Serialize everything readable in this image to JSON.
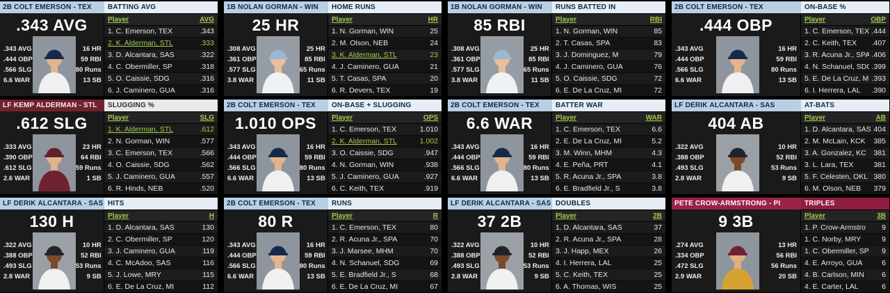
{
  "app": {
    "view_name": "league-batting-leaders"
  },
  "colors": {
    "link_green": "#a2cc4d",
    "page_bg": "#000000",
    "card_bg": "#181818",
    "header_blue_bg": "#b8d0e4",
    "header_blue_fg": "#0f2942",
    "header_maroon_bg": "#72222e",
    "header_crimson_bg": "#9b2247"
  },
  "cards": [
    {
      "header": {
        "player_label": "2B COLT EMERSON - TEX",
        "category_label": "BATTING AVG",
        "player_bg": "#b8d0e4",
        "player_fg": "#0f2942",
        "category_bg": "#e6edf4",
        "category_fg": "#0f2942"
      },
      "featured": {
        "big_stat": ".343 AVG",
        "left_stats": [
          ".343 AVG",
          ".444 OBP",
          ".566 SLG",
          "6.6 WAR"
        ],
        "right_stats": [
          "16 HR",
          "59 RBI",
          "80 Runs",
          "13 SB"
        ],
        "avatar": {
          "skin": "#e3b48c",
          "cap": "#15294d",
          "jersey": "#f0f0f2",
          "backdrop": "#8f959c"
        }
      },
      "board": {
        "player_col_label": "Player",
        "stat_col_label": "AVG",
        "rows": [
          {
            "name": "1. C. Emerson, TEX",
            "value": ".343",
            "highlight": false
          },
          {
            "name": "2. K. Alderman, STL",
            "value": ".333",
            "highlight": true
          },
          {
            "name": "3. D. Alcantara, SAS",
            "value": ".322",
            "highlight": false
          },
          {
            "name": "4. C. Obermiller, SP",
            "value": ".318",
            "highlight": false
          },
          {
            "name": "5. O. Caissie, SDG",
            "value": ".316",
            "highlight": false
          },
          {
            "name": "6. J. Caminero, GUA",
            "value": ".316",
            "highlight": false
          }
        ]
      }
    },
    {
      "header": {
        "player_label": "1B NOLAN GORMAN - WIN",
        "category_label": "HOME RUNS",
        "player_bg": "#b8d0e4",
        "player_fg": "#0f2942",
        "category_bg": "#e6edf4",
        "category_fg": "#0f2942"
      },
      "featured": {
        "big_stat": "25 HR",
        "left_stats": [
          ".308 AVG",
          ".361 OBP",
          ".577 SLG",
          "3.8 WAR"
        ],
        "right_stats": [
          "25 HR",
          "85 RBI",
          "65 Runs",
          "11 SB"
        ],
        "avatar": {
          "skin": "#e8c09a",
          "cap": "#9cb8d4",
          "jersey": "#eef2f6",
          "backdrop": "#969ca3"
        }
      },
      "board": {
        "player_col_label": "Player",
        "stat_col_label": "HR",
        "rows": [
          {
            "name": "1. N. Gorman, WIN",
            "value": "25",
            "highlight": false
          },
          {
            "name": "2. M. Olson, NEB",
            "value": "24",
            "highlight": false
          },
          {
            "name": "3. K. Alderman, STL",
            "value": "23",
            "highlight": true
          },
          {
            "name": "4. J. Caminero, GUA",
            "value": "21",
            "highlight": false
          },
          {
            "name": "5. T. Casas, SPA",
            "value": "20",
            "highlight": false
          },
          {
            "name": "6. R. Devers, TEX",
            "value": "19",
            "highlight": false
          }
        ]
      }
    },
    {
      "header": {
        "player_label": "1B NOLAN GORMAN - WIN",
        "category_label": "RUNS BATTED IN",
        "player_bg": "#b8d0e4",
        "player_fg": "#0f2942",
        "category_bg": "#e6edf4",
        "category_fg": "#0f2942"
      },
      "featured": {
        "big_stat": "85 RBI",
        "left_stats": [
          ".308 AVG",
          ".361 OBP",
          ".577 SLG",
          "3.8 WAR"
        ],
        "right_stats": [
          "25 HR",
          "85 RBI",
          "65 Runs",
          "11 SB"
        ],
        "avatar": {
          "skin": "#e8c09a",
          "cap": "#9cb8d4",
          "jersey": "#eef2f6",
          "backdrop": "#969ca3"
        }
      },
      "board": {
        "player_col_label": "Player",
        "stat_col_label": "RBI",
        "rows": [
          {
            "name": "1. N. Gorman, WIN",
            "value": "85",
            "highlight": false
          },
          {
            "name": "2. T. Casas, SPA",
            "value": "83",
            "highlight": false
          },
          {
            "name": "3. J. Dominguez, M",
            "value": "79",
            "highlight": false
          },
          {
            "name": "4. J. Caminero, GUA",
            "value": "76",
            "highlight": false
          },
          {
            "name": "5. O. Caissie, SDG",
            "value": "72",
            "highlight": false
          },
          {
            "name": "6. E. De La Cruz, MI",
            "value": "72",
            "highlight": false
          }
        ]
      }
    },
    {
      "header": {
        "player_label": "2B COLT EMERSON - TEX",
        "category_label": "ON-BASE %",
        "player_bg": "#b8d0e4",
        "player_fg": "#0f2942",
        "category_bg": "#e6edf4",
        "category_fg": "#0f2942"
      },
      "featured": {
        "big_stat": ".444 OBP",
        "left_stats": [
          ".343 AVG",
          ".444 OBP",
          ".566 SLG",
          "6.6 WAR"
        ],
        "right_stats": [
          "16 HR",
          "59 RBI",
          "80 Runs",
          "13 SB"
        ],
        "avatar": {
          "skin": "#e3b48c",
          "cap": "#15294d",
          "jersey": "#f0f0f2",
          "backdrop": "#8f959c"
        }
      },
      "board": {
        "player_col_label": "Player",
        "stat_col_label": "OBP",
        "rows": [
          {
            "name": "1. C. Emerson, TEX",
            "value": ".444",
            "highlight": false
          },
          {
            "name": "2. C. Keith, TEX",
            "value": ".407",
            "highlight": false
          },
          {
            "name": "3. R. Acuna Jr., SPA",
            "value": ".406",
            "highlight": false
          },
          {
            "name": "4. N. Schanuel, SDG",
            "value": ".399",
            "highlight": false
          },
          {
            "name": "5. E. De La Cruz, MI",
            "value": ".393",
            "highlight": false
          },
          {
            "name": "6. I. Herrera, LAL",
            "value": ".390",
            "highlight": false
          }
        ]
      }
    },
    {
      "header": {
        "player_label": "LF KEMP ALDERMAN - STL",
        "category_label": "SLUGGING %",
        "player_bg": "#72222e",
        "player_fg": "#f5ecec",
        "category_bg": "#e9e9ec",
        "category_fg": "#2b2b33"
      },
      "featured": {
        "big_stat": ".612 SLG",
        "left_stats": [
          ".333 AVG",
          ".390 OBP",
          ".612 SLG",
          "2.6 WAR"
        ],
        "right_stats": [
          "23 HR",
          "64 RBI",
          "59 Runs",
          "1 SB"
        ],
        "avatar": {
          "skin": "#e2b28a",
          "cap": "#62202b",
          "jersey": "#6e2230",
          "backdrop": "#8f959c"
        }
      },
      "board": {
        "player_col_label": "Player",
        "stat_col_label": "SLG",
        "rows": [
          {
            "name": "1. K. Alderman, STL",
            "value": ".612",
            "highlight": true
          },
          {
            "name": "2. N. Gorman, WIN",
            "value": ".577",
            "highlight": false
          },
          {
            "name": "3. C. Emerson, TEX",
            "value": ".566",
            "highlight": false
          },
          {
            "name": "4. O. Caissie, SDG",
            "value": ".562",
            "highlight": false
          },
          {
            "name": "5. J. Caminero, GUA",
            "value": ".557",
            "highlight": false
          },
          {
            "name": "6. R. Hinds, NEB",
            "value": ".520",
            "highlight": false
          }
        ]
      }
    },
    {
      "header": {
        "player_label": "2B COLT EMERSON - TEX",
        "category_label": "ON-BASE + SLUGGING",
        "player_bg": "#b8d0e4",
        "player_fg": "#0f2942",
        "category_bg": "#e6edf4",
        "category_fg": "#0f2942"
      },
      "featured": {
        "big_stat": "1.010 OPS",
        "left_stats": [
          ".343 AVG",
          ".444 OBP",
          ".566 SLG",
          "6.6 WAR"
        ],
        "right_stats": [
          "16 HR",
          "59 RBI",
          "80 Runs",
          "13 SB"
        ],
        "avatar": {
          "skin": "#e3b48c",
          "cap": "#15294d",
          "jersey": "#f0f0f2",
          "backdrop": "#8f959c"
        }
      },
      "board": {
        "player_col_label": "Player",
        "stat_col_label": "OPS",
        "rows": [
          {
            "name": "1. C. Emerson, TEX",
            "value": "1.010",
            "highlight": false
          },
          {
            "name": "2. K. Alderman, STL",
            "value": "1.002",
            "highlight": true
          },
          {
            "name": "3. O. Caissie, SDG",
            "value": ".947",
            "highlight": false
          },
          {
            "name": "4. N. Gorman, WIN",
            "value": ".938",
            "highlight": false
          },
          {
            "name": "5. J. Caminero, GUA",
            "value": ".927",
            "highlight": false
          },
          {
            "name": "6. C. Keith, TEX",
            "value": ".919",
            "highlight": false
          }
        ]
      }
    },
    {
      "header": {
        "player_label": "2B COLT EMERSON - TEX",
        "category_label": "BATTER WAR",
        "player_bg": "#b8d0e4",
        "player_fg": "#0f2942",
        "category_bg": "#e6edf4",
        "category_fg": "#0f2942"
      },
      "featured": {
        "big_stat": "6.6 WAR",
        "left_stats": [
          ".343 AVG",
          ".444 OBP",
          ".566 SLG",
          "6.6 WAR"
        ],
        "right_stats": [
          "16 HR",
          "59 RBI",
          "80 Runs",
          "13 SB"
        ],
        "avatar": {
          "skin": "#e3b48c",
          "cap": "#15294d",
          "jersey": "#f0f0f2",
          "backdrop": "#8f959c"
        }
      },
      "board": {
        "player_col_label": "Player",
        "stat_col_label": "WAR",
        "rows": [
          {
            "name": "1. C. Emerson, TEX",
            "value": "6.6",
            "highlight": false
          },
          {
            "name": "2. E. De La Cruz, MI",
            "value": "5.2",
            "highlight": false
          },
          {
            "name": "3. M. Winn, MHM",
            "value": "4.3",
            "highlight": false
          },
          {
            "name": "4. E. Peña, PRT",
            "value": "4.1",
            "highlight": false
          },
          {
            "name": "5. R. Acuna Jr., SPA",
            "value": "3.8",
            "highlight": false
          },
          {
            "name": "6. E. Bradfield Jr., S",
            "value": "3.8",
            "highlight": false
          }
        ]
      }
    },
    {
      "header": {
        "player_label": "LF DERIK ALCANTARA - SAS",
        "category_label": "AT-BATS",
        "player_bg": "#b8d0e4",
        "player_fg": "#0f2942",
        "category_bg": "#e6edf4",
        "category_fg": "#0f2942"
      },
      "featured": {
        "big_stat": "404 AB",
        "left_stats": [
          ".322 AVG",
          ".388 OBP",
          ".493 SLG",
          "2.8 WAR"
        ],
        "right_stats": [
          "10 HR",
          "52 RBI",
          "53 Runs",
          "9 SB"
        ],
        "avatar": {
          "skin": "#7c4a2a",
          "cap": "#20242a",
          "jersey": "#f0f0f0",
          "backdrop": "#9aa0a6"
        }
      },
      "board": {
        "player_col_label": "Player",
        "stat_col_label": "AB",
        "rows": [
          {
            "name": "1. D. Alcantara, SAS",
            "value": "404",
            "highlight": false
          },
          {
            "name": "2. M. McLain, KCK",
            "value": "385",
            "highlight": false
          },
          {
            "name": "3. A. Gonzalez, KC",
            "value": "381",
            "highlight": false
          },
          {
            "name": "3. L. Lara, TEX",
            "value": "381",
            "highlight": false
          },
          {
            "name": "5. F. Celesten, OKL",
            "value": "380",
            "highlight": false
          },
          {
            "name": "6. M. Olson, NEB",
            "value": "379",
            "highlight": false
          }
        ]
      }
    },
    {
      "header": {
        "player_label": "LF DERIK ALCANTARA - SAS",
        "category_label": "HITS",
        "player_bg": "#b8d0e4",
        "player_fg": "#0f2942",
        "category_bg": "#e6edf4",
        "category_fg": "#0f2942"
      },
      "featured": {
        "big_stat": "130 H",
        "left_stats": [
          ".322 AVG",
          ".388 OBP",
          ".493 SLG",
          "2.8 WAR"
        ],
        "right_stats": [
          "10 HR",
          "52 RBI",
          "53 Runs",
          "9 SB"
        ],
        "avatar": {
          "skin": "#7c4a2a",
          "cap": "#20242a",
          "jersey": "#f0f0f0",
          "backdrop": "#9aa0a6"
        }
      },
      "board": {
        "player_col_label": "Player",
        "stat_col_label": "H",
        "rows": [
          {
            "name": "1. D. Alcantara, SAS",
            "value": "130",
            "highlight": false
          },
          {
            "name": "2. C. Obermiller, SP",
            "value": "120",
            "highlight": false
          },
          {
            "name": "3. J. Caminero, GUA",
            "value": "119",
            "highlight": false
          },
          {
            "name": "4. C. McAdoo, SAS",
            "value": "116",
            "highlight": false
          },
          {
            "name": "5. J. Lowe, MRY",
            "value": "115",
            "highlight": false
          },
          {
            "name": "6. E. De La Cruz, MI",
            "value": "112",
            "highlight": false
          }
        ]
      }
    },
    {
      "header": {
        "player_label": "2B COLT EMERSON - TEX",
        "category_label": "RUNS",
        "player_bg": "#b8d0e4",
        "player_fg": "#0f2942",
        "category_bg": "#e6edf4",
        "category_fg": "#0f2942"
      },
      "featured": {
        "big_stat": "80 R",
        "left_stats": [
          ".343 AVG",
          ".444 OBP",
          ".566 SLG",
          "6.6 WAR"
        ],
        "right_stats": [
          "16 HR",
          "59 RBI",
          "80 Runs",
          "13 SB"
        ],
        "avatar": {
          "skin": "#e3b48c",
          "cap": "#15294d",
          "jersey": "#f0f0f2",
          "backdrop": "#8f959c"
        }
      },
      "board": {
        "player_col_label": "Player",
        "stat_col_label": "R",
        "rows": [
          {
            "name": "1. C. Emerson, TEX",
            "value": "80",
            "highlight": false
          },
          {
            "name": "2. R. Acuna Jr., SPA",
            "value": "70",
            "highlight": false
          },
          {
            "name": "3. J. Marsee, MHM",
            "value": "70",
            "highlight": false
          },
          {
            "name": "4. N. Schanuel, SDG",
            "value": "69",
            "highlight": false
          },
          {
            "name": "5. E. Bradfield Jr., S",
            "value": "68",
            "highlight": false
          },
          {
            "name": "6. E. De La Cruz, MI",
            "value": "67",
            "highlight": false
          }
        ]
      }
    },
    {
      "header": {
        "player_label": "LF DERIK ALCANTARA - SAS",
        "category_label": "DOUBLES",
        "player_bg": "#b8d0e4",
        "player_fg": "#0f2942",
        "category_bg": "#e6edf4",
        "category_fg": "#0f2942"
      },
      "featured": {
        "big_stat": "37 2B",
        "left_stats": [
          ".322 AVG",
          ".388 OBP",
          ".493 SLG",
          "2.8 WAR"
        ],
        "right_stats": [
          "10 HR",
          "52 RBI",
          "53 Runs",
          "9 SB"
        ],
        "avatar": {
          "skin": "#7c4a2a",
          "cap": "#20242a",
          "jersey": "#f0f0f0",
          "backdrop": "#9aa0a6"
        }
      },
      "board": {
        "player_col_label": "Player",
        "stat_col_label": "2B",
        "rows": [
          {
            "name": "1. D. Alcantara, SAS",
            "value": "37",
            "highlight": false
          },
          {
            "name": "2. R. Acuna Jr., SPA",
            "value": "28",
            "highlight": false
          },
          {
            "name": "3. J. Happ, MEX",
            "value": "26",
            "highlight": false
          },
          {
            "name": "4. I. Herrera, LAL",
            "value": "25",
            "highlight": false
          },
          {
            "name": "5. C. Keith, TEX",
            "value": "25",
            "highlight": false
          },
          {
            "name": "6. A. Thomas, WIS",
            "value": "25",
            "highlight": false
          }
        ]
      }
    },
    {
      "header": {
        "player_label": "PETE CROW-ARMSTRONG - PI",
        "category_label": "TRIPLES",
        "player_bg": "#9b2247",
        "player_fg": "#fdf3f5",
        "category_bg": "#8f1e40",
        "category_fg": "#fdf3f5"
      },
      "featured": {
        "big_stat": "9 3B",
        "left_stats": [
          ".274 AVG",
          ".334 OBP",
          ".472 SLG",
          "2.9 WAR"
        ],
        "right_stats": [
          "13 HR",
          "56 RBI",
          "56 Runs",
          "20 SB"
        ],
        "avatar": {
          "skin": "#e0ae83",
          "cap": "#6f1f38",
          "jersey": "#d6a332",
          "backdrop": "#8f959c"
        }
      },
      "board": {
        "player_col_label": "Player",
        "stat_col_label": "3B",
        "rows": [
          {
            "name": "1. P. Crow-Armstro",
            "value": "9",
            "highlight": false
          },
          {
            "name": "1. C. Norby, MRY",
            "value": "9",
            "highlight": false
          },
          {
            "name": "1. C. Obermiller, SP",
            "value": "9",
            "highlight": false
          },
          {
            "name": "4. E. Arroyo, GUA",
            "value": "6",
            "highlight": false
          },
          {
            "name": "4. B. Carlson, MIN",
            "value": "6",
            "highlight": false
          },
          {
            "name": "4. E. Carter, LAL",
            "value": "6",
            "highlight": false
          }
        ]
      }
    }
  ]
}
